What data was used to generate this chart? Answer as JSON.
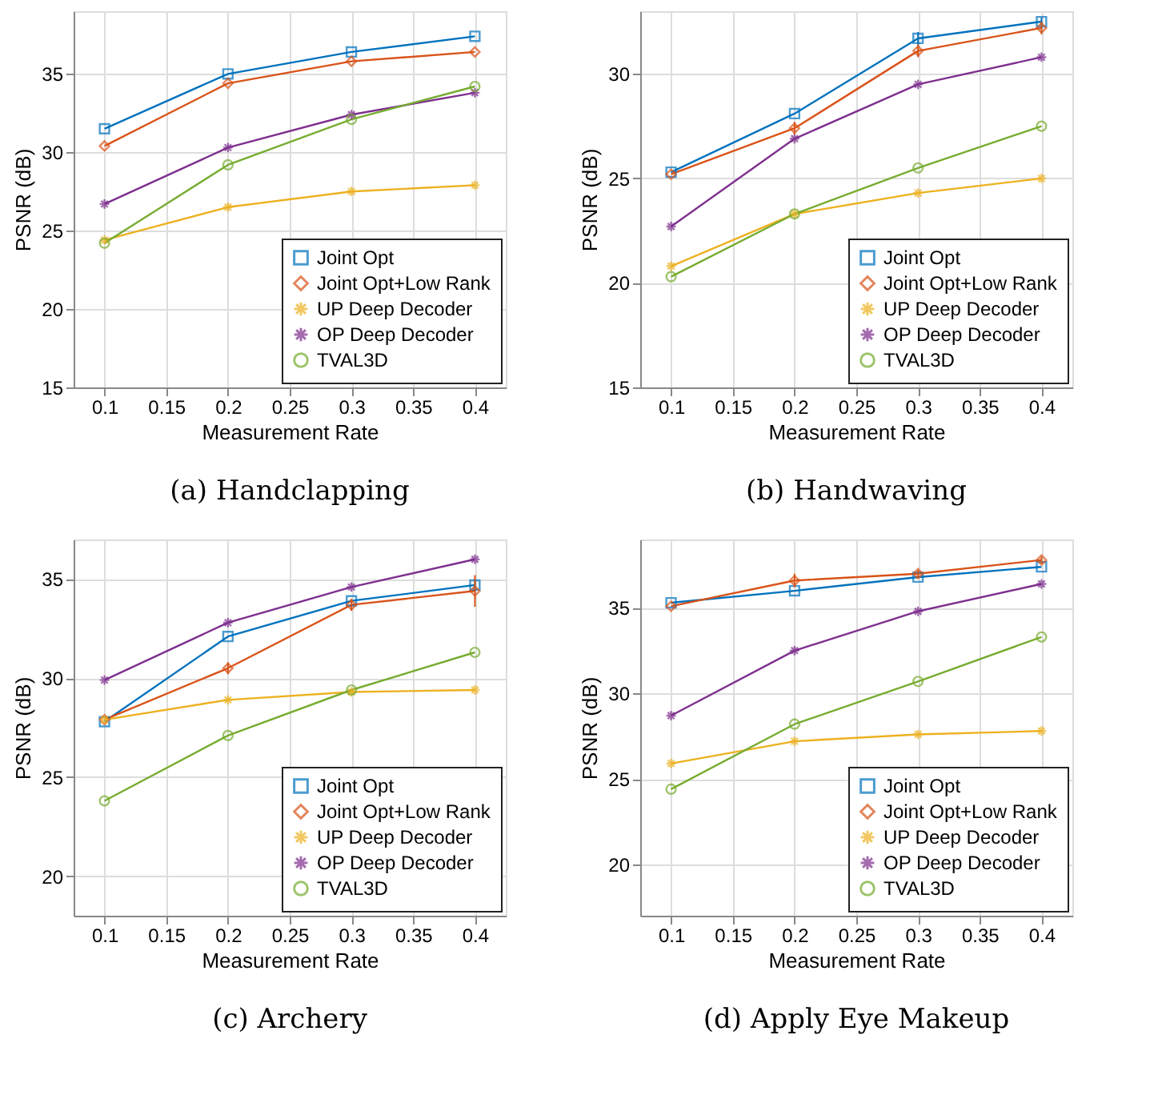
{
  "chart_data": [
    {
      "type": "line",
      "title": "(a) Handclapping",
      "xlabel": "Measurement Rate",
      "ylabel": "PSNR (dB)",
      "x": [
        0.1,
        0.2,
        0.3,
        0.4
      ],
      "xlim": [
        0.075,
        0.425
      ],
      "xticks": [
        0.1,
        0.15,
        0.2,
        0.25,
        0.3,
        0.35,
        0.4
      ],
      "ylim": [
        15,
        39
      ],
      "yticks": [
        15,
        20,
        25,
        30,
        35
      ],
      "grid": true,
      "legend": "bottom right",
      "series": [
        {
          "name": "Joint Opt",
          "color": "#0072bd",
          "marker": "square",
          "values": [
            31.5,
            35.0,
            36.4,
            37.4
          ]
        },
        {
          "name": "Joint Opt+Low Rank",
          "color": "#d95319",
          "marker": "diamond",
          "values": [
            30.4,
            34.4,
            35.8,
            36.4
          ]
        },
        {
          "name": "UP Deep Decoder",
          "color": "#edb120",
          "marker": "cross",
          "values": [
            24.4,
            26.5,
            27.5,
            27.9
          ]
        },
        {
          "name": "OP Deep Decoder",
          "color": "#7e2f8e",
          "marker": "cross",
          "values": [
            26.7,
            30.3,
            32.4,
            33.8
          ]
        },
        {
          "name": "TVAL3D",
          "color": "#77ac30",
          "marker": "circle",
          "values": [
            24.2,
            29.2,
            32.1,
            34.2
          ]
        }
      ]
    },
    {
      "type": "line",
      "title": "(b) Handwaving",
      "xlabel": "Measurement Rate",
      "ylabel": "PSNR (dB)",
      "x": [
        0.1,
        0.2,
        0.3,
        0.4
      ],
      "xlim": [
        0.075,
        0.425
      ],
      "xticks": [
        0.1,
        0.15,
        0.2,
        0.25,
        0.3,
        0.35,
        0.4
      ],
      "ylim": [
        15,
        33
      ],
      "yticks": [
        15,
        20,
        25,
        30
      ],
      "grid": true,
      "legend": "bottom right",
      "series": [
        {
          "name": "Joint Opt",
          "color": "#0072bd",
          "marker": "square",
          "values": [
            25.3,
            28.1,
            31.7,
            32.5
          ],
          "errors": [
            null,
            null,
            0.3,
            0.2
          ]
        },
        {
          "name": "Joint Opt+Low Rank",
          "color": "#d95319",
          "marker": "diamond",
          "values": [
            25.2,
            27.4,
            31.1,
            32.2
          ],
          "errors": [
            null,
            0.3,
            0.3,
            0.3
          ]
        },
        {
          "name": "UP Deep Decoder",
          "color": "#edb120",
          "marker": "cross",
          "values": [
            20.8,
            23.3,
            24.3,
            25.0
          ]
        },
        {
          "name": "OP Deep Decoder",
          "color": "#7e2f8e",
          "marker": "cross",
          "values": [
            22.7,
            26.9,
            29.5,
            30.8
          ]
        },
        {
          "name": "TVAL3D",
          "color": "#77ac30",
          "marker": "circle",
          "values": [
            20.3,
            23.3,
            25.5,
            27.5
          ]
        }
      ]
    },
    {
      "type": "line",
      "title": "(c) Archery",
      "xlabel": "Measurement Rate",
      "ylabel": "PSNR (dB)",
      "x": [
        0.1,
        0.2,
        0.3,
        0.4
      ],
      "xlim": [
        0.075,
        0.425
      ],
      "xticks": [
        0.1,
        0.15,
        0.2,
        0.25,
        0.3,
        0.35,
        0.4
      ],
      "ylim": [
        18,
        37
      ],
      "yticks": [
        20,
        25,
        30,
        35
      ],
      "grid": true,
      "legend": "bottom right",
      "series": [
        {
          "name": "Joint Opt",
          "color": "#0072bd",
          "marker": "square",
          "values": [
            27.8,
            32.1,
            33.9,
            34.7
          ],
          "errors": [
            null,
            null,
            null,
            0.3
          ]
        },
        {
          "name": "Joint Opt+Low Rank",
          "color": "#d95319",
          "marker": "diamond",
          "values": [
            27.9,
            30.5,
            33.7,
            34.4
          ],
          "errors": [
            null,
            0.3,
            0.3,
            0.8
          ]
        },
        {
          "name": "UP Deep Decoder",
          "color": "#edb120",
          "marker": "cross",
          "values": [
            27.9,
            28.9,
            29.3,
            29.4
          ]
        },
        {
          "name": "OP Deep Decoder",
          "color": "#7e2f8e",
          "marker": "cross",
          "values": [
            29.9,
            32.8,
            34.6,
            36.0
          ]
        },
        {
          "name": "TVAL3D",
          "color": "#77ac30",
          "marker": "circle",
          "values": [
            23.8,
            27.1,
            29.4,
            31.3
          ]
        }
      ]
    },
    {
      "type": "line",
      "title": "(d) Apply Eye Makeup",
      "xlabel": "Measurement Rate",
      "ylabel": "PSNR (dB)",
      "x": [
        0.1,
        0.2,
        0.3,
        0.4
      ],
      "xlim": [
        0.075,
        0.425
      ],
      "xticks": [
        0.1,
        0.15,
        0.2,
        0.25,
        0.3,
        0.35,
        0.4
      ],
      "ylim": [
        17,
        39
      ],
      "yticks": [
        20,
        25,
        30,
        35
      ],
      "grid": true,
      "legend": "bottom right",
      "series": [
        {
          "name": "Joint Opt",
          "color": "#0072bd",
          "marker": "square",
          "values": [
            35.3,
            36.0,
            36.8,
            37.4
          ]
        },
        {
          "name": "Joint Opt+Low Rank",
          "color": "#d95319",
          "marker": "diamond",
          "values": [
            35.1,
            36.6,
            37.0,
            37.8
          ],
          "errors": [
            null,
            0.4,
            0.2,
            0.2
          ]
        },
        {
          "name": "UP Deep Decoder",
          "color": "#edb120",
          "marker": "cross",
          "values": [
            25.9,
            27.2,
            27.6,
            27.8
          ]
        },
        {
          "name": "OP Deep Decoder",
          "color": "#7e2f8e",
          "marker": "cross",
          "values": [
            28.7,
            32.5,
            34.8,
            36.4
          ]
        },
        {
          "name": "TVAL3D",
          "color": "#77ac30",
          "marker": "circle",
          "values": [
            24.4,
            28.2,
            30.7,
            33.3
          ]
        }
      ]
    }
  ]
}
